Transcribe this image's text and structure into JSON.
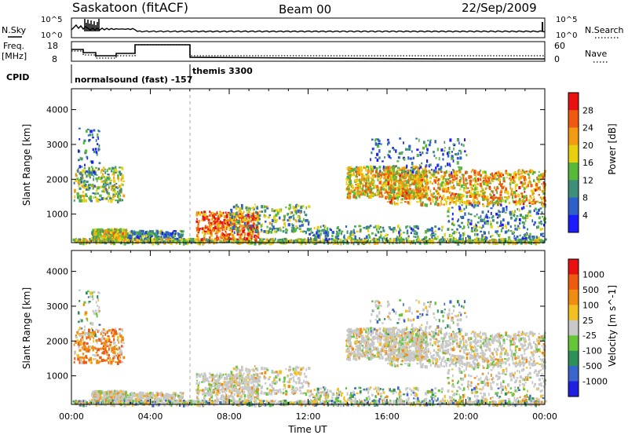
{
  "header": {
    "station": "Saskatoon (fitACF)",
    "beam": "Beam 00",
    "date": "22/Sep/2009"
  },
  "top_panels": {
    "nsky_label": "N.Sky",
    "nsearch_label": "N.Search",
    "nsky_ticks": [
      "10^5",
      "10^0"
    ],
    "nsearch_ticks": [
      "10^5",
      "10^0"
    ],
    "freq_label_1": "Freq.",
    "freq_label_2": "[MHz]",
    "freq_ticks": [
      "18",
      "8"
    ],
    "nave_label": "Nave",
    "nave_ticks": [
      "60",
      "0"
    ],
    "cpid_label": "CPID",
    "cpid_1": "normalsound (fast) -157",
    "cpid_2": "themis 3300"
  },
  "chart_data": [
    {
      "type": "heatmap",
      "title": "",
      "xlabel": "Time UT",
      "ylabel": "Slant Range [km]",
      "x_ticks": [
        "00:00",
        "04:00",
        "08:00",
        "12:00",
        "16:00",
        "20:00",
        "00:00"
      ],
      "xlim_hours": [
        0,
        24
      ],
      "y_ticks": [
        1000,
        2000,
        3000,
        4000
      ],
      "ylim": [
        180,
        4600
      ],
      "colorbar_label": "Power [dB]",
      "colorbar_ticks": [
        4,
        8,
        12,
        16,
        20,
        24,
        28
      ],
      "colorbar_colors": [
        "#1c1cff",
        "#2f5fc8",
        "#3d8f7a",
        "#58b83a",
        "#e6d010",
        "#f29a12",
        "#f05a10",
        "#e81010"
      ]
    },
    {
      "type": "heatmap",
      "title": "",
      "xlabel": "Time UT",
      "ylabel": "Slant Range [km]",
      "x_ticks": [
        "00:00",
        "04:00",
        "08:00",
        "12:00",
        "16:00",
        "20:00",
        "00:00"
      ],
      "xlim_hours": [
        0,
        24
      ],
      "y_ticks": [
        1000,
        2000,
        3000,
        4000
      ],
      "ylim": [
        180,
        4600
      ],
      "colorbar_label": "Velocity [m s^-1]",
      "colorbar_ticks": [
        "1000",
        "500",
        "100",
        "25",
        "-25",
        "-100",
        "-500",
        "-1000"
      ],
      "colorbar_colors": [
        "#2020e0",
        "#3a66cc",
        "#2f8f5a",
        "#66c63a",
        "#c8c8c8",
        "#f2c020",
        "#f08c10",
        "#ee5a10",
        "#e81010"
      ]
    }
  ]
}
